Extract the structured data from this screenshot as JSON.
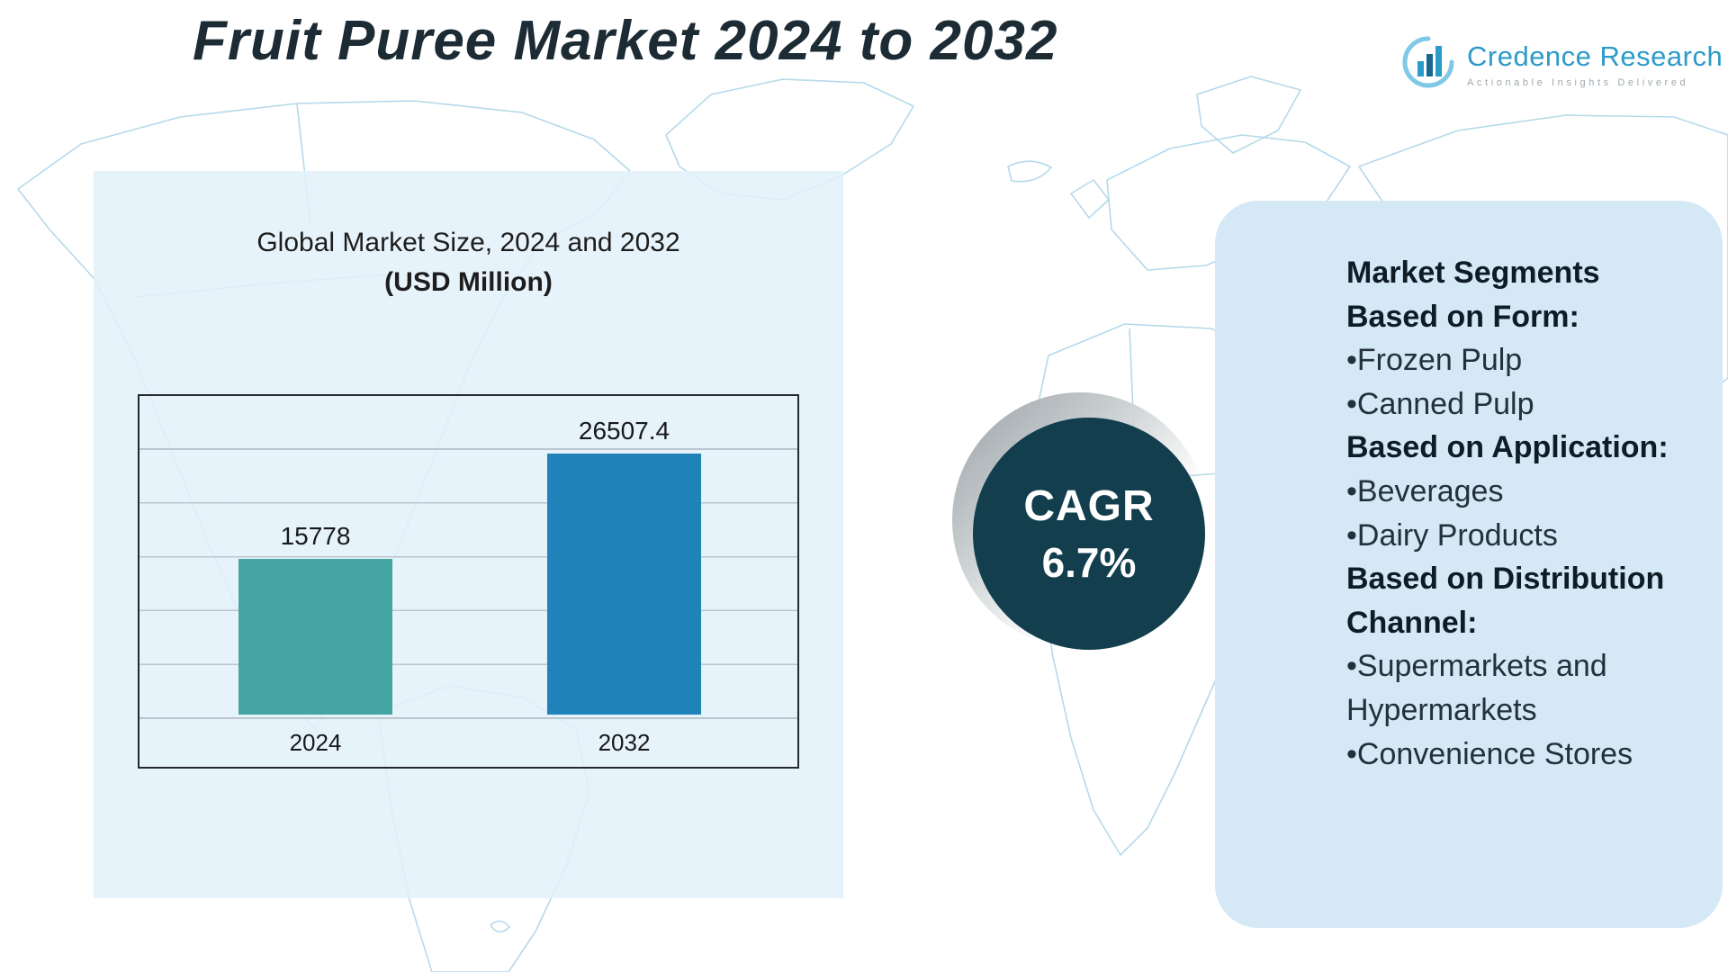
{
  "title": "Fruit Puree Market 2024 to 2032",
  "logo": {
    "name": "Credence Research",
    "tagline": "Actionable Insights Delivered",
    "icon": "bar-chart-circle-icon"
  },
  "chart_data": {
    "type": "bar",
    "title": "Global Market Size, 2024 and 2032",
    "subtitle": "(USD Million)",
    "categories": [
      "2024",
      "2032"
    ],
    "values": [
      15778,
      26507.4
    ],
    "value_labels": [
      "15778",
      "26507.4"
    ],
    "bar_colors": [
      "#45a5a3",
      "#1f83ba"
    ],
    "ylim": [
      0,
      30000
    ],
    "grid": true,
    "legend_position": "none"
  },
  "cagr": {
    "label": "CAGR",
    "value": "6.7%"
  },
  "segments": {
    "list": [
      {
        "type": "heading",
        "text": "Market Segments"
      },
      {
        "type": "heading",
        "text": "Based on Form:"
      },
      {
        "type": "item",
        "text": "•Frozen Pulp"
      },
      {
        "type": "item",
        "text": "•Canned Pulp"
      },
      {
        "type": "heading",
        "text": "Based on Application:"
      },
      {
        "type": "item",
        "text": "•Beverages"
      },
      {
        "type": "item",
        "text": "•Dairy Products"
      },
      {
        "type": "heading",
        "text": "Based on Distribution Channel:"
      },
      {
        "type": "item",
        "text": "•Supermarkets and Hypermarkets"
      },
      {
        "type": "item",
        "text": "•Convenience Stores"
      }
    ]
  },
  "colors": {
    "bar_2024": "#45a5a3",
    "bar_2032": "#1f83ba",
    "cagr_circle": "#123e4d",
    "left_panel_bg": "#e3f1f9",
    "right_panel_bg": "#d5e8f5",
    "map_line": "#b5d9ea",
    "logo_blue": "#2d9bc7",
    "title_text": "#1d2b35"
  }
}
